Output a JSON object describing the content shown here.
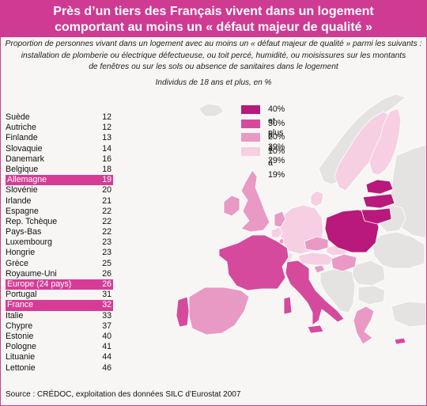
{
  "title": {
    "line1": "Près d’un tiers des Français vivent dans un logement",
    "line2": "comportant au moins un « défaut majeur de qualité »"
  },
  "subtitle": {
    "line1": "Proportion de personnes vivant dans un logement avec au moins un « défaut majeur de qualité » parmi les suivants :",
    "line2": "installation de plomberie ou électrique défectueuse, ou toit percé, humidité, ou moisissures sur les montants",
    "line3": "de fenêtres ou sur les sols ou absence de sanitaires dans le logement",
    "units": "Individus de 18 ans et plus, en %"
  },
  "legend": [
    {
      "label": "40% et plus",
      "color": "#b8197a"
    },
    {
      "label": "30% à 39%",
      "color": "#d54a9d"
    },
    {
      "label": "20% à 29%",
      "color": "#e89ac4"
    },
    {
      "label": "10% à 19%",
      "color": "#f6cfe2"
    }
  ],
  "countries": [
    {
      "name": "Suède",
      "value": "12",
      "highlight": false
    },
    {
      "name": "Autriche",
      "value": "12",
      "highlight": false
    },
    {
      "name": "Finlande",
      "value": "13",
      "highlight": false
    },
    {
      "name": "Slovaquie",
      "value": "14",
      "highlight": false
    },
    {
      "name": "Danemark",
      "value": "16",
      "highlight": false
    },
    {
      "name": "Belgique",
      "value": "18",
      "highlight": false
    },
    {
      "name": "Allemagne",
      "value": "19",
      "highlight": true
    },
    {
      "name": "Slovénie",
      "value": "20",
      "highlight": false
    },
    {
      "name": "Irlande",
      "value": "21",
      "highlight": false
    },
    {
      "name": "Espagne",
      "value": "22",
      "highlight": false
    },
    {
      "name": "Rep. Tchèque",
      "value": "22",
      "highlight": false
    },
    {
      "name": "Pays-Bas",
      "value": "22",
      "highlight": false
    },
    {
      "name": "Luxembourg",
      "value": "23",
      "highlight": false
    },
    {
      "name": "Hongrie",
      "value": "23",
      "highlight": false
    },
    {
      "name": "Grèce",
      "value": "25",
      "highlight": false
    },
    {
      "name": "Royaume-Uni",
      "value": "26",
      "highlight": false
    },
    {
      "name": "Europe (24 pays)",
      "value": "26",
      "highlight": true
    },
    {
      "name": "Portugal",
      "value": "31",
      "highlight": false
    },
    {
      "name": "France",
      "value": "32",
      "highlight": true
    },
    {
      "name": "Italie",
      "value": "33",
      "highlight": false
    },
    {
      "name": "Chypre",
      "value": "37",
      "highlight": false
    },
    {
      "name": "Estonie",
      "value": "40",
      "highlight": false
    },
    {
      "name": "Pologne",
      "value": "41",
      "highlight": false
    },
    {
      "name": "Lituanie",
      "value": "44",
      "highlight": false
    },
    {
      "name": "Lettonie",
      "value": "46",
      "highlight": false
    }
  ],
  "source": "Source : CRÉDOC, exploitation des données SILC d’Eurostat 2007",
  "colors": {
    "header": "#cf3a92",
    "background": "#f7f6f4",
    "no_data": "#e5e3e1",
    "highlight_row": "#d63c96"
  }
}
